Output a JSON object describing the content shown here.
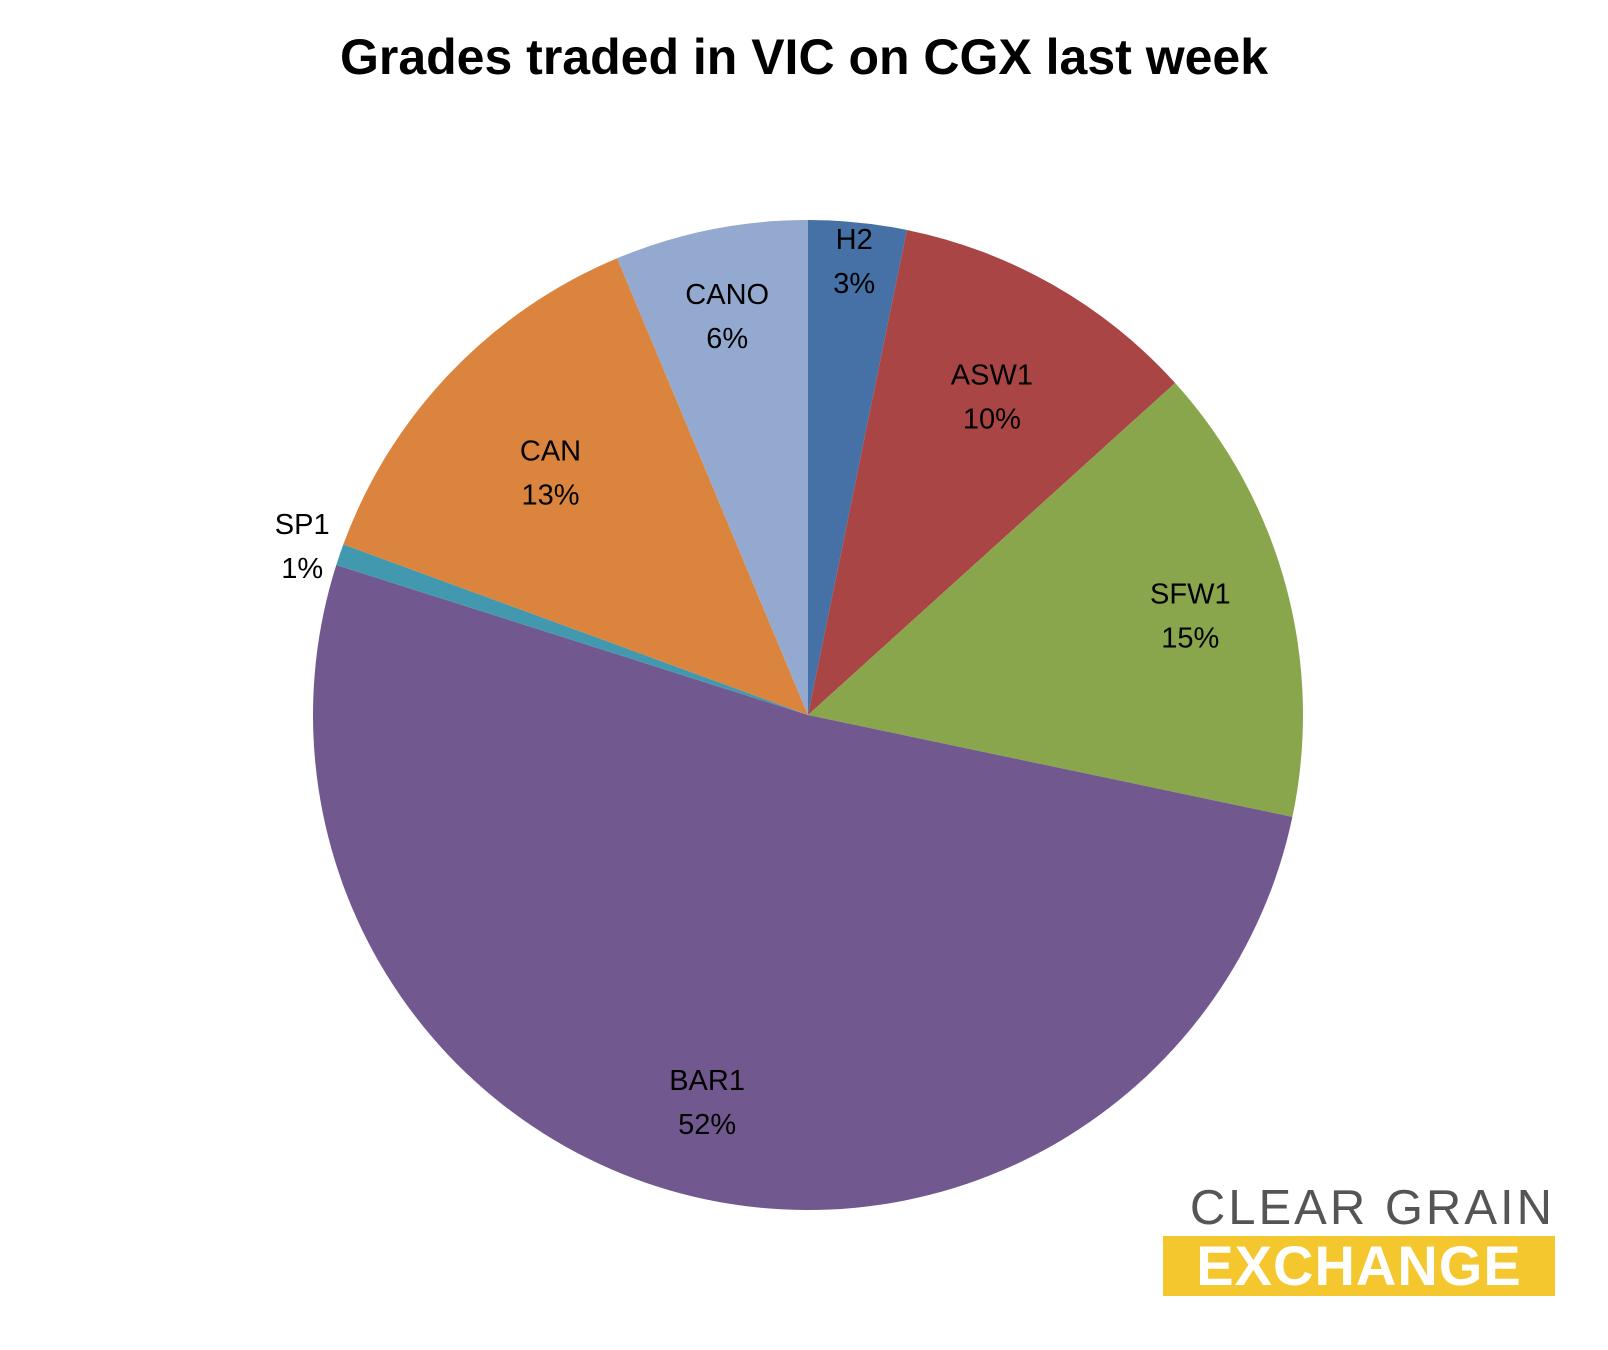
{
  "chart_data": {
    "type": "pie",
    "title": "Grades traded in VIC on CGX last week",
    "start_angle_deg": 0,
    "direction": "clockwise",
    "slices": [
      {
        "label": "H2",
        "percent_label": "3%",
        "value": 3.2,
        "color": "#4571a6"
      },
      {
        "label": "ASW1",
        "percent_label": "10%",
        "value": 10.1,
        "color": "#a94645"
      },
      {
        "label": "SFW1",
        "percent_label": "15%",
        "value": 15.0,
        "color": "#89a64d"
      },
      {
        "label": "BAR1",
        "percent_label": "52%",
        "value": 51.6,
        "color": "#71588f"
      },
      {
        "label": "SP1",
        "percent_label": "1%",
        "value": 0.7,
        "color": "#4198af"
      },
      {
        "label": "CAN",
        "percent_label": "13%",
        "value": 13.1,
        "color": "#db843d"
      },
      {
        "label": "CANO",
        "percent_label": "6%",
        "value": 6.3,
        "color": "#93a9cf"
      }
    ],
    "legend": "none"
  },
  "logo": {
    "line1": "CLEAR GRAIN",
    "line2": "EXCHANGE",
    "line1_color": "#555555",
    "line2_bg": "#f5c72f"
  }
}
